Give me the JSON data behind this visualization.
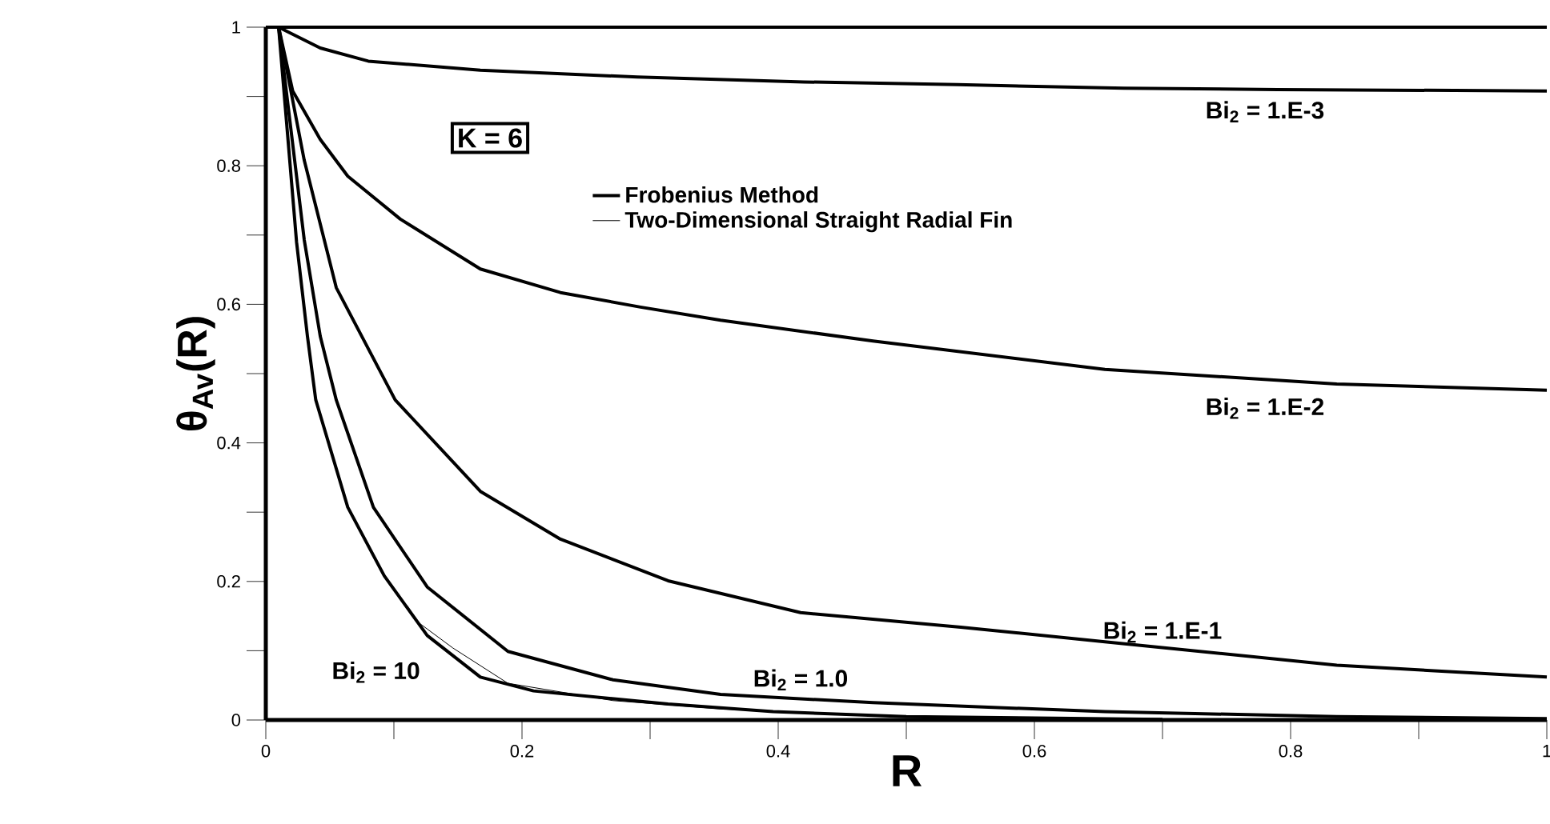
{
  "chart_data": {
    "type": "line",
    "xlabel": "R",
    "ylabel": "θ$_{Av}$(R)",
    "xlim": [
      0,
      1
    ],
    "ylim": [
      0,
      1
    ],
    "xticks": [
      0,
      {
        "value": 0.1,
        "label": null
      },
      0.2,
      {
        "value": 0.3,
        "label": null
      },
      0.4,
      {
        "value": 0.5,
        "label": null
      },
      0.6,
      {
        "value": 0.7,
        "label": null
      },
      0.8,
      {
        "value": 0.9,
        "label": null
      },
      1
    ],
    "yticks": [
      0,
      {
        "value": 0.1,
        "label": null
      },
      0.2,
      {
        "value": 0.3,
        "label": null
      },
      0.4,
      {
        "value": 0.5,
        "label": null
      },
      0.6,
      {
        "value": 0.7,
        "label": null
      },
      0.8,
      {
        "value": 0.9,
        "label": null
      },
      1
    ],
    "grid": false,
    "legend": "top",
    "marker": "none",
    "line_style": "solid",
    "series": [
      {
        "name": "Frobenius Method",
        "color": "#000000",
        "x": [
          0.01,
          0.0425,
          0.08,
          0.1675,
          0.29,
          0.42,
          0.54,
          0.67,
          0.79,
          1.0
        ],
        "values": [
          1,
          0.97,
          0.951,
          0.938,
          0.928,
          0.921,
          0.917,
          0.912,
          0.91,
          0.908
        ]
      },
      {
        "color": "#000000",
        "x": [
          0.01,
          0.021,
          0.0425,
          0.064,
          0.105,
          0.1675,
          0.23,
          0.2925,
          0.355,
          0.474,
          0.655,
          0.836,
          1.0
        ],
        "values": [
          1,
          0.908,
          0.838,
          0.785,
          0.723,
          0.651,
          0.617,
          0.596,
          0.577,
          0.547,
          0.506,
          0.485,
          0.476
        ]
      },
      {
        "color": "#000000",
        "x": [
          0.01,
          0.03,
          0.055,
          0.101,
          0.1675,
          0.23,
          0.314,
          0.4175,
          0.5425,
          0.655,
          0.836,
          1.0
        ],
        "values": [
          1,
          0.808,
          0.624,
          0.462,
          0.33,
          0.261,
          0.201,
          0.155,
          0.134,
          0.113,
          0.079,
          0.062
        ]
      },
      {
        "color": "#000000",
        "x": [
          0.01,
          0.03,
          0.0425,
          0.055,
          0.084,
          0.126,
          0.189,
          0.271,
          0.355,
          0.474,
          0.655,
          0.836,
          1.0
        ],
        "values": [
          1,
          0.693,
          0.554,
          0.462,
          0.307,
          0.192,
          0.099,
          0.058,
          0.037,
          0.025,
          0.012,
          0.005,
          0.002
        ]
      },
      {
        "color": "#000000",
        "x": [
          0.01,
          0.024,
          0.0325,
          0.039,
          0.064,
          0.0925,
          0.126,
          0.1675,
          0.209,
          0.314,
          0.396,
          0.5,
          0.7
        ],
        "values": [
          1,
          0.69,
          0.554,
          0.462,
          0.307,
          0.208,
          0.122,
          0.062,
          0.042,
          0.023,
          0.012,
          0.005,
          0.001
        ]
      },
      {
        "name": "Two-Dimensional Straight Radial Fin",
        "color": "#000000",
        "x": [
          0.1175,
          0.146,
          0.189,
          0.271,
          0.355,
          0.45,
          0.6
        ],
        "values": [
          0.143,
          0.104,
          0.053,
          0.028,
          0.016,
          0.008,
          0.002
        ]
      }
    ],
    "annotations": [
      "Bi$_{2}$ = 1.E-3",
      "Bi$_{2}$ = 1.E-2",
      "Bi$_{2}$ = 1.E-1",
      "Bi$_{2}$ = 1.0",
      "Bi$_{2}$ = 10",
      "K = 6"
    ]
  }
}
